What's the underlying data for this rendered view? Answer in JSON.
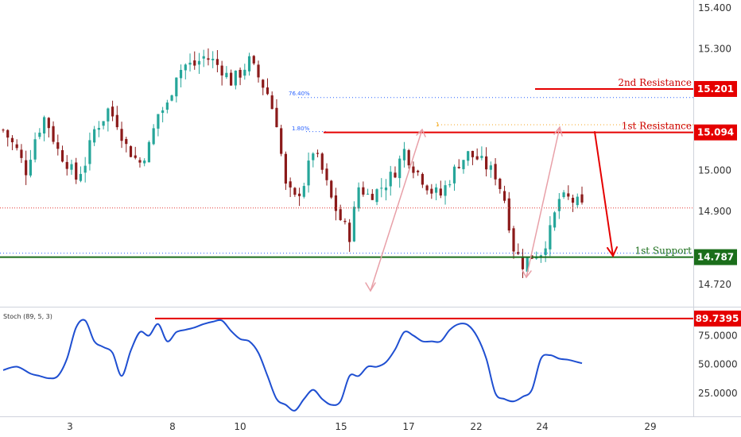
{
  "chart_data": [
    {
      "type": "candlestick",
      "ylim": [
        14.665,
        15.42
      ],
      "y_ticks": [
        "15.400",
        "15.300",
        "15.000",
        "14.900",
        "14.720"
      ],
      "x_ticks": [
        "3",
        "8",
        "10",
        "15",
        "17",
        "22",
        "24",
        "29"
      ],
      "colors": {
        "up": "#26a69a",
        "down": "#8b1a1a",
        "resistance": "#e50000",
        "support": "#1b6e1b",
        "fib": "#2962ff",
        "price": "#e53935"
      },
      "levels": [
        {
          "name": "2nd Resistance",
          "value": 15.201,
          "badge": "15.201"
        },
        {
          "name": "1st Resistance",
          "value": 15.094,
          "badge": "15.094"
        },
        {
          "name": "1st Support",
          "value": 14.787,
          "badge": "14.787"
        }
      ],
      "fib_labels": [
        "76.40%",
        "1.80%",
        "1"
      ],
      "fib_levels": [
        15.18,
        15.096
      ],
      "current_price": 14.908,
      "close_path": [
        [
          0,
          15.1
        ],
        [
          3,
          15.05
        ],
        [
          5,
          15.0
        ],
        [
          7,
          15.08
        ],
        [
          9,
          15.13
        ],
        [
          10,
          15.11
        ],
        [
          12,
          15.05
        ],
        [
          14,
          15.02
        ],
        [
          16,
          14.98
        ],
        [
          18,
          15.02
        ],
        [
          20,
          15.1
        ],
        [
          22,
          15.13
        ],
        [
          23,
          15.15
        ],
        [
          25,
          15.12
        ],
        [
          27,
          15.06
        ],
        [
          29,
          15.03
        ],
        [
          30,
          15.02
        ],
        [
          32,
          15.06
        ],
        [
          34,
          15.14
        ],
        [
          36,
          15.16
        ],
        [
          38,
          15.24
        ],
        [
          40,
          15.26
        ],
        [
          42,
          15.26
        ],
        [
          44,
          15.28
        ],
        [
          46,
          15.27
        ],
        [
          48,
          15.25
        ],
        [
          50,
          15.22
        ],
        [
          52,
          15.24
        ],
        [
          54,
          15.27
        ],
        [
          56,
          15.23
        ],
        [
          58,
          15.19
        ],
        [
          60,
          15.12
        ],
        [
          62,
          14.96
        ],
        [
          64,
          14.93
        ],
        [
          66,
          14.97
        ],
        [
          68,
          15.05
        ],
        [
          70,
          15.0
        ],
        [
          72,
          14.93
        ],
        [
          74,
          14.88
        ],
        [
          76,
          14.84
        ],
        [
          78,
          14.96
        ],
        [
          80,
          14.94
        ],
        [
          82,
          14.95
        ],
        [
          84,
          14.97
        ],
        [
          86,
          15.0
        ],
        [
          88,
          15.05
        ],
        [
          90,
          15.01
        ],
        [
          92,
          14.98
        ],
        [
          94,
          14.95
        ],
        [
          96,
          14.94
        ],
        [
          98,
          14.98
        ],
        [
          100,
          15.02
        ],
        [
          102,
          15.04
        ],
        [
          104,
          15.03
        ],
        [
          106,
          15.01
        ],
        [
          108,
          14.99
        ],
        [
          110,
          14.93
        ],
        [
          112,
          14.81
        ],
        [
          114,
          14.77
        ],
        [
          116,
          14.79
        ],
        [
          118,
          14.8
        ],
        [
          120,
          14.85
        ],
        [
          122,
          14.93
        ],
        [
          124,
          14.93
        ],
        [
          126,
          14.92
        ],
        [
          127,
          14.91
        ]
      ]
    },
    {
      "type": "line",
      "indicator": "Stoch (89, 5, 3)",
      "ylim": [
        5,
        100
      ],
      "y_ticks": [
        "75.0000",
        "50.0000",
        "25.0000"
      ],
      "level": {
        "value": 89.7395,
        "badge": "89.7395"
      },
      "color": "#1f4fd1",
      "x": [
        0,
        3,
        6,
        8,
        10,
        12,
        14,
        16,
        18,
        20,
        22,
        24,
        26,
        28,
        30,
        32,
        34,
        36,
        38,
        40,
        42,
        44,
        46,
        48,
        50,
        52,
        54,
        56,
        58,
        60,
        62,
        64,
        66,
        68,
        70,
        72,
        74,
        76,
        78,
        80,
        82,
        84,
        86,
        88,
        90,
        92,
        94,
        96,
        98,
        100,
        102,
        104,
        106,
        108,
        110,
        112,
        114,
        116,
        118,
        120,
        122,
        124,
        126,
        127
      ],
      "values": [
        45,
        48,
        42,
        40,
        38,
        40,
        55,
        82,
        88,
        70,
        65,
        60,
        40,
        62,
        78,
        75,
        85,
        70,
        78,
        80,
        82,
        85,
        87,
        88,
        79,
        72,
        70,
        60,
        40,
        20,
        15,
        10,
        20,
        28,
        20,
        15,
        18,
        40,
        40,
        48,
        48,
        52,
        63,
        78,
        75,
        70,
        70,
        70,
        80,
        85,
        84,
        74,
        55,
        25,
        20,
        18,
        22,
        28,
        55,
        58,
        55,
        54,
        52,
        51
      ]
    }
  ]
}
